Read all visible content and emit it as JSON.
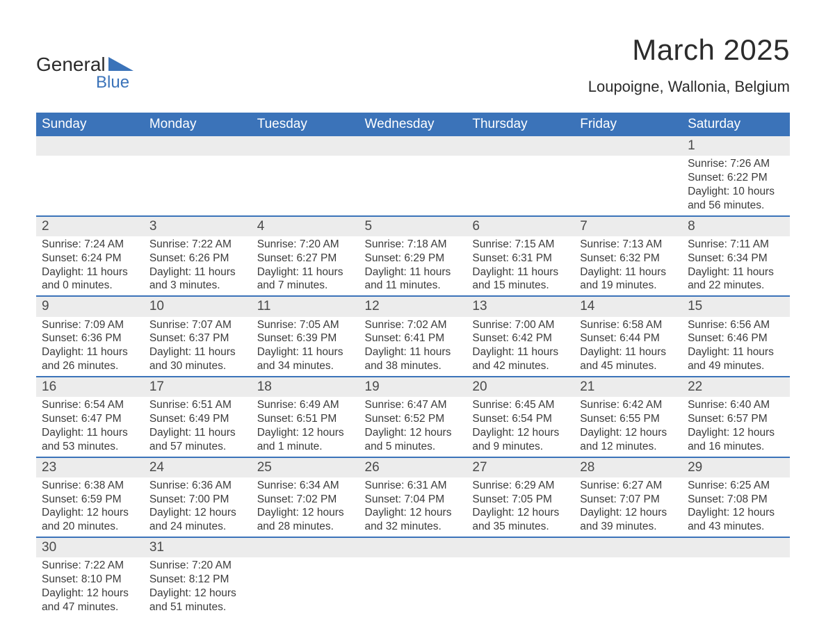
{
  "logo": {
    "text_top": "General",
    "text_bottom": "Blue",
    "triangle_color": "#3b73b9",
    "text_color": "#2b2b2b"
  },
  "title": "March 2025",
  "subtitle": "Loupoigne, Wallonia, Belgium",
  "header_bg": "#3b73b9",
  "daynum_bg": "#ececec",
  "row_border_color": "#3b73b9",
  "weekdays": [
    "Sunday",
    "Monday",
    "Tuesday",
    "Wednesday",
    "Thursday",
    "Friday",
    "Saturday"
  ],
  "labels": {
    "sunrise": "Sunrise:",
    "sunset": "Sunset:",
    "daylight": "Daylight:"
  },
  "weeks": [
    [
      null,
      null,
      null,
      null,
      null,
      null,
      {
        "n": "1",
        "sunrise": "7:26 AM",
        "sunset": "6:22 PM",
        "daylight": "10 hours and 56 minutes."
      }
    ],
    [
      {
        "n": "2",
        "sunrise": "7:24 AM",
        "sunset": "6:24 PM",
        "daylight": "11 hours and 0 minutes."
      },
      {
        "n": "3",
        "sunrise": "7:22 AM",
        "sunset": "6:26 PM",
        "daylight": "11 hours and 3 minutes."
      },
      {
        "n": "4",
        "sunrise": "7:20 AM",
        "sunset": "6:27 PM",
        "daylight": "11 hours and 7 minutes."
      },
      {
        "n": "5",
        "sunrise": "7:18 AM",
        "sunset": "6:29 PM",
        "daylight": "11 hours and 11 minutes."
      },
      {
        "n": "6",
        "sunrise": "7:15 AM",
        "sunset": "6:31 PM",
        "daylight": "11 hours and 15 minutes."
      },
      {
        "n": "7",
        "sunrise": "7:13 AM",
        "sunset": "6:32 PM",
        "daylight": "11 hours and 19 minutes."
      },
      {
        "n": "8",
        "sunrise": "7:11 AM",
        "sunset": "6:34 PM",
        "daylight": "11 hours and 22 minutes."
      }
    ],
    [
      {
        "n": "9",
        "sunrise": "7:09 AM",
        "sunset": "6:36 PM",
        "daylight": "11 hours and 26 minutes."
      },
      {
        "n": "10",
        "sunrise": "7:07 AM",
        "sunset": "6:37 PM",
        "daylight": "11 hours and 30 minutes."
      },
      {
        "n": "11",
        "sunrise": "7:05 AM",
        "sunset": "6:39 PM",
        "daylight": "11 hours and 34 minutes."
      },
      {
        "n": "12",
        "sunrise": "7:02 AM",
        "sunset": "6:41 PM",
        "daylight": "11 hours and 38 minutes."
      },
      {
        "n": "13",
        "sunrise": "7:00 AM",
        "sunset": "6:42 PM",
        "daylight": "11 hours and 42 minutes."
      },
      {
        "n": "14",
        "sunrise": "6:58 AM",
        "sunset": "6:44 PM",
        "daylight": "11 hours and 45 minutes."
      },
      {
        "n": "15",
        "sunrise": "6:56 AM",
        "sunset": "6:46 PM",
        "daylight": "11 hours and 49 minutes."
      }
    ],
    [
      {
        "n": "16",
        "sunrise": "6:54 AM",
        "sunset": "6:47 PM",
        "daylight": "11 hours and 53 minutes."
      },
      {
        "n": "17",
        "sunrise": "6:51 AM",
        "sunset": "6:49 PM",
        "daylight": "11 hours and 57 minutes."
      },
      {
        "n": "18",
        "sunrise": "6:49 AM",
        "sunset": "6:51 PM",
        "daylight": "12 hours and 1 minute."
      },
      {
        "n": "19",
        "sunrise": "6:47 AM",
        "sunset": "6:52 PM",
        "daylight": "12 hours and 5 minutes."
      },
      {
        "n": "20",
        "sunrise": "6:45 AM",
        "sunset": "6:54 PM",
        "daylight": "12 hours and 9 minutes."
      },
      {
        "n": "21",
        "sunrise": "6:42 AM",
        "sunset": "6:55 PM",
        "daylight": "12 hours and 12 minutes."
      },
      {
        "n": "22",
        "sunrise": "6:40 AM",
        "sunset": "6:57 PM",
        "daylight": "12 hours and 16 minutes."
      }
    ],
    [
      {
        "n": "23",
        "sunrise": "6:38 AM",
        "sunset": "6:59 PM",
        "daylight": "12 hours and 20 minutes."
      },
      {
        "n": "24",
        "sunrise": "6:36 AM",
        "sunset": "7:00 PM",
        "daylight": "12 hours and 24 minutes."
      },
      {
        "n": "25",
        "sunrise": "6:34 AM",
        "sunset": "7:02 PM",
        "daylight": "12 hours and 28 minutes."
      },
      {
        "n": "26",
        "sunrise": "6:31 AM",
        "sunset": "7:04 PM",
        "daylight": "12 hours and 32 minutes."
      },
      {
        "n": "27",
        "sunrise": "6:29 AM",
        "sunset": "7:05 PM",
        "daylight": "12 hours and 35 minutes."
      },
      {
        "n": "28",
        "sunrise": "6:27 AM",
        "sunset": "7:07 PM",
        "daylight": "12 hours and 39 minutes."
      },
      {
        "n": "29",
        "sunrise": "6:25 AM",
        "sunset": "7:08 PM",
        "daylight": "12 hours and 43 minutes."
      }
    ],
    [
      {
        "n": "30",
        "sunrise": "7:22 AM",
        "sunset": "8:10 PM",
        "daylight": "12 hours and 47 minutes."
      },
      {
        "n": "31",
        "sunrise": "7:20 AM",
        "sunset": "8:12 PM",
        "daylight": "12 hours and 51 minutes."
      },
      null,
      null,
      null,
      null,
      null
    ]
  ]
}
